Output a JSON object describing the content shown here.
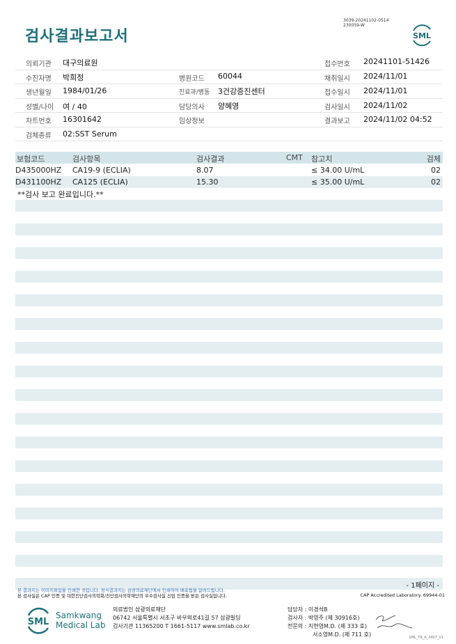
{
  "header": {
    "title": "검사결과보고서",
    "doc_id_line1": "3039-20241102-0514",
    "doc_id_line2": "230059-W",
    "logo": "SML"
  },
  "info": {
    "institution_label": "의뢰기관",
    "institution": "대구의료원",
    "receipt_no_label": "접수번호",
    "receipt_no": "20241101-51426",
    "patient_label": "수진자명",
    "patient": "박희정",
    "hospital_code_label": "병원코드",
    "hospital_code": "60044",
    "collected_label": "채취일시",
    "collected": "2024/11/01",
    "dob_label": "생년월일",
    "dob": "1984/01/26",
    "dept_label": "진료과/병동",
    "dept": "3건강증진센터",
    "received_label": "접수일시",
    "received": "2024/11/01",
    "sex_age_label": "성별/나이",
    "sex_age": "여 / 40",
    "doctor_label": "담당의사",
    "doctor": "양혜영",
    "tested_label": "검사일시",
    "tested": "2024/11/02",
    "chart_label": "차트번호",
    "chart": "16301642",
    "clinical_label": "임상정보",
    "clinical": "",
    "reported_label": "결과보고",
    "reported": "2024/11/02 04:52",
    "specimen_label": "검체종류",
    "specimen": "02:SST Serum"
  },
  "table": {
    "headers": {
      "code": "보험코드",
      "item": "검사항목",
      "result": "검사결과",
      "cmt": "CMT",
      "ref": "참고치",
      "specimen": "검체"
    },
    "rows": [
      {
        "code": "D435000HZ",
        "item": "CA19-9 (ECLIA)",
        "result": "8.07",
        "cmt": "",
        "ref": "≤ 34.00 U/mL",
        "specimen": "02"
      },
      {
        "code": "D431100HZ",
        "item": "CA125 (ECLIA)",
        "result": "15.30",
        "cmt": "",
        "ref": "≤ 35.00 U/mL",
        "specimen": "02"
      }
    ],
    "note": "**검사 보고 완료입니다.**"
  },
  "footer": {
    "page": "- 1페이지 -",
    "notice1": "본 결과지는 이미지파일을 인쇄한 것입니다. 정식결과지는 삼광의료재단에서 인쇄하여 배포됨을 알려드립니다.",
    "notice2": "본 검사실은 CAP 인증 및 대한진단검사의학회/진단검사의학재단의 우수검사실 신임 인증을 받은 검사실입니다.",
    "cap": "CAP Accredited Laboratory. 69944-01",
    "brand_logo": "SML",
    "brand_line1": "Samkwang",
    "brand_line2": "Medical Lab",
    "org": "의료법인 삼광의료재단",
    "address": "06742 서울특별시 서초구 바우뫼로41길 57 삼광빌딩",
    "contact": "검사기관 11365200 T 1661-5117 www.smlab.co.kr",
    "manager_label": "담당자 :",
    "manager": "이경석B",
    "tester_label": "검사자 :",
    "tester": "박영주 (제 30916호)",
    "specialist_label": "전문의 :",
    "specialist1": "지현영M.D. (제 333 호)",
    "specialist2": "서소영M.D. (제 711 호)",
    "form_code": "SML_TR_A_2407_V1"
  },
  "colors": {
    "brand": "#1e6f78",
    "header_band": "#d3e5ea",
    "stripe": "#e4eef1"
  }
}
